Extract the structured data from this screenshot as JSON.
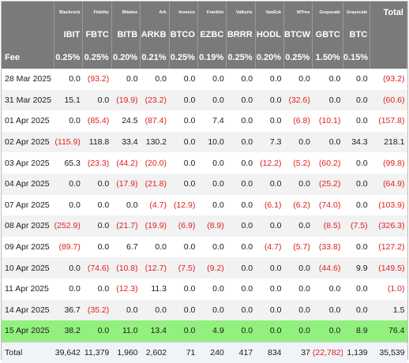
{
  "issuers": [
    "Blackrock",
    "Fidelity",
    "Bitwise",
    "Ark",
    "Invesco",
    "Franklin",
    "Valkyrie",
    "VanEck",
    "WTree",
    "Grayscale",
    "Grayscale"
  ],
  "total_header": "Total",
  "tickers": [
    "IBIT",
    "FBTC",
    "BITB",
    "ARKB",
    "BTCO",
    "EZBC",
    "BRRR",
    "HODL",
    "BTCW",
    "GBTC",
    "BTC"
  ],
  "fee_label": "Fee",
  "fees": [
    "0.25%",
    "0.25%",
    "0.20%",
    "0.21%",
    "0.25%",
    "0.19%",
    "0.25%",
    "0.20%",
    "0.25%",
    "1.50%",
    "0.15%"
  ],
  "rows": [
    {
      "date": "28 Mar 2025",
      "values": [
        "0.0",
        "(93.2)",
        "0.0",
        "0.0",
        "0.0",
        "0.0",
        "0.0",
        "0.0",
        "0.0",
        "0.0",
        "0.0"
      ],
      "total": "(93.2)"
    },
    {
      "date": "31 Mar 2025",
      "values": [
        "15.1",
        "0.0",
        "(19.9)",
        "(23.2)",
        "0.0",
        "0.0",
        "0.0",
        "0.0",
        "(32.6)",
        "0.0",
        "0.0"
      ],
      "total": "(60.6)"
    },
    {
      "date": "01 Apr 2025",
      "values": [
        "0.0",
        "(85.4)",
        "24.5",
        "(87.4)",
        "0.0",
        "7.4",
        "0.0",
        "0.0",
        "(6.8)",
        "(10.1)",
        "0.0"
      ],
      "total": "(157.8)"
    },
    {
      "date": "02 Apr 2025",
      "values": [
        "(115.9)",
        "118.8",
        "33.4",
        "130.2",
        "0.0",
        "10.0",
        "0.0",
        "7.3",
        "0.0",
        "0.0",
        "34.3"
      ],
      "total": "218.1"
    },
    {
      "date": "03 Apr 2025",
      "values": [
        "65.3",
        "(23.3)",
        "(44.2)",
        "(20.0)",
        "0.0",
        "0.0",
        "0.0",
        "(12.2)",
        "(5.2)",
        "(60.2)",
        "0.0"
      ],
      "total": "(99.8)"
    },
    {
      "date": "04 Apr 2025",
      "values": [
        "0.0",
        "0.0",
        "(17.9)",
        "(21.8)",
        "0.0",
        "0.0",
        "0.0",
        "0.0",
        "0.0",
        "(25.2)",
        "0.0"
      ],
      "total": "(64.9)"
    },
    {
      "date": "07 Apr 2025",
      "values": [
        "0.0",
        "0.0",
        "0.0",
        "(4.7)",
        "(12.9)",
        "0.0",
        "0.0",
        "(6.1)",
        "(6.2)",
        "(74.0)",
        "0.0"
      ],
      "total": "(103.9)"
    },
    {
      "date": "08 Apr 2025",
      "values": [
        "(252.9)",
        "0.0",
        "(21.7)",
        "(19.9)",
        "(6.9)",
        "(8.9)",
        "0.0",
        "0.0",
        "0.0",
        "(8.5)",
        "(7.5)"
      ],
      "total": "(326.3)"
    },
    {
      "date": "09 Apr 2025",
      "values": [
        "(89.7)",
        "0.0",
        "6.7",
        "0.0",
        "0.0",
        "0.0",
        "0.0",
        "(4.7)",
        "(5.7)",
        "(33.8)",
        "0.0"
      ],
      "total": "(127.2)"
    },
    {
      "date": "10 Apr 2025",
      "values": [
        "0.0",
        "(74.6)",
        "(10.8)",
        "(12.7)",
        "(7.5)",
        "(9.2)",
        "0.0",
        "0.0",
        "0.0",
        "(44.6)",
        "9.9"
      ],
      "total": "(149.5)"
    },
    {
      "date": "11 Apr 2025",
      "values": [
        "0.0",
        "0.0",
        "(12.3)",
        "11.3",
        "0.0",
        "0.0",
        "0.0",
        "0.0",
        "0.0",
        "0.0",
        "0.0"
      ],
      "total": "(1.0)"
    },
    {
      "date": "14 Apr 2025",
      "values": [
        "36.7",
        "(35.2)",
        "0.0",
        "0.0",
        "0.0",
        "0.0",
        "0.0",
        "0.0",
        "0.0",
        "0.0",
        "0.0"
      ],
      "total": "1.5"
    },
    {
      "date": "15 Apr 2025",
      "values": [
        "38.2",
        "0.0",
        "11.0",
        "13.4",
        "0.0",
        "4.9",
        "0.0",
        "0.0",
        "0.0",
        "0.0",
        "8.9"
      ],
      "total": "76.4"
    }
  ],
  "total_row": {
    "label": "Total",
    "values": [
      "39,642",
      "11,379",
      "1,960",
      "2,602",
      "71",
      "240",
      "417",
      "834",
      "37",
      "(22,782)",
      "1,139"
    ],
    "total": "35,539"
  },
  "colors": {
    "header_bg": "#7a7a7a",
    "negative": "#e02020",
    "highlight": "#92f07e",
    "alt_row": "#f2f2f2",
    "total_row_bg": "#f0f3f8"
  }
}
